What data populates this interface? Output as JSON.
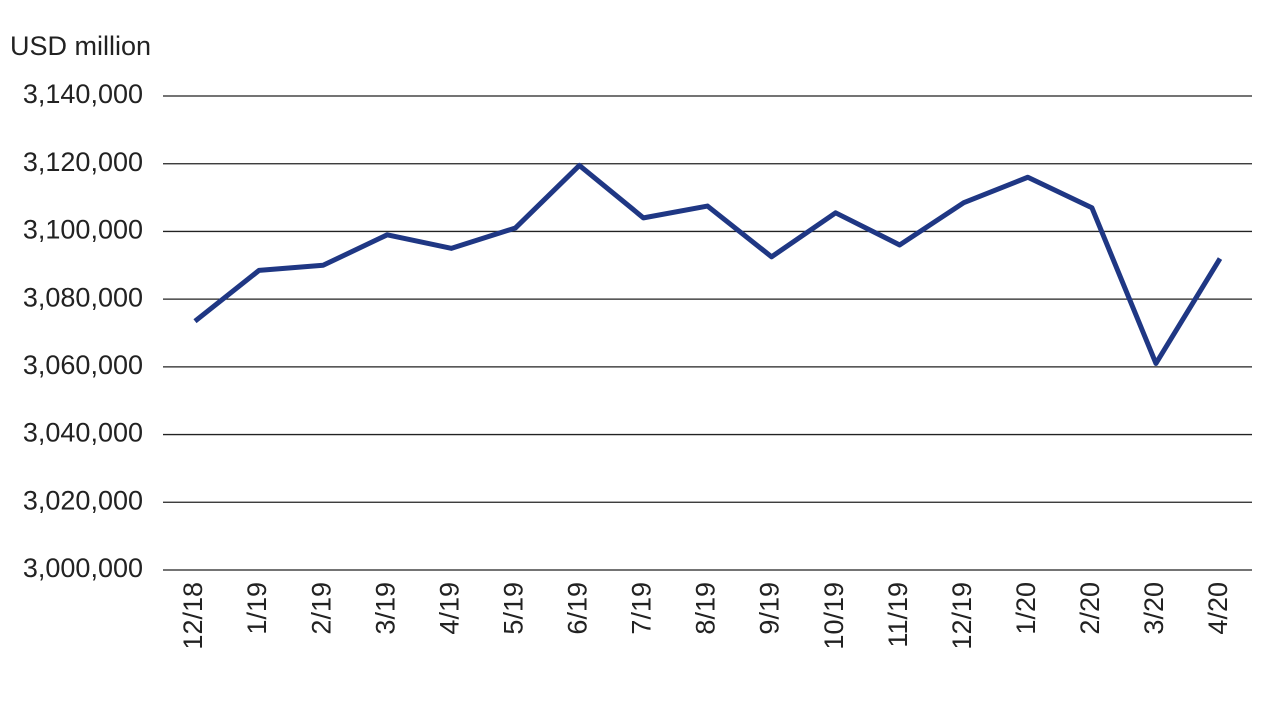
{
  "chart_data": {
    "type": "line",
    "y_axis_label": "USD million",
    "categories": [
      "12/18",
      "1/19",
      "2/19",
      "3/19",
      "4/19",
      "5/19",
      "6/19",
      "7/19",
      "8/19",
      "9/19",
      "10/19",
      "11/19",
      "12/19",
      "1/20",
      "2/20",
      "3/20",
      "4/20"
    ],
    "series": [
      {
        "color": "#1f3784",
        "values": [
          3073500,
          3088500,
          3090000,
          3099000,
          3095000,
          3101000,
          3119500,
          3104000,
          3107500,
          3092500,
          3105500,
          3096000,
          3108500,
          3116000,
          3107000,
          3061000,
          3092000
        ]
      }
    ],
    "ylim": [
      3000000,
      3140000
    ],
    "yticks": [
      {
        "value": 3000000,
        "label": "3,000,000"
      },
      {
        "value": 3020000,
        "label": "3,020,000"
      },
      {
        "value": 3040000,
        "label": "3,040,000"
      },
      {
        "value": 3060000,
        "label": "3,060,000"
      },
      {
        "value": 3080000,
        "label": "3,080,000"
      },
      {
        "value": 3100000,
        "label": "3,100,000"
      },
      {
        "value": 3120000,
        "label": "3,120,000"
      },
      {
        "value": 3140000,
        "label": "3,140,000"
      }
    ],
    "grid": true
  }
}
